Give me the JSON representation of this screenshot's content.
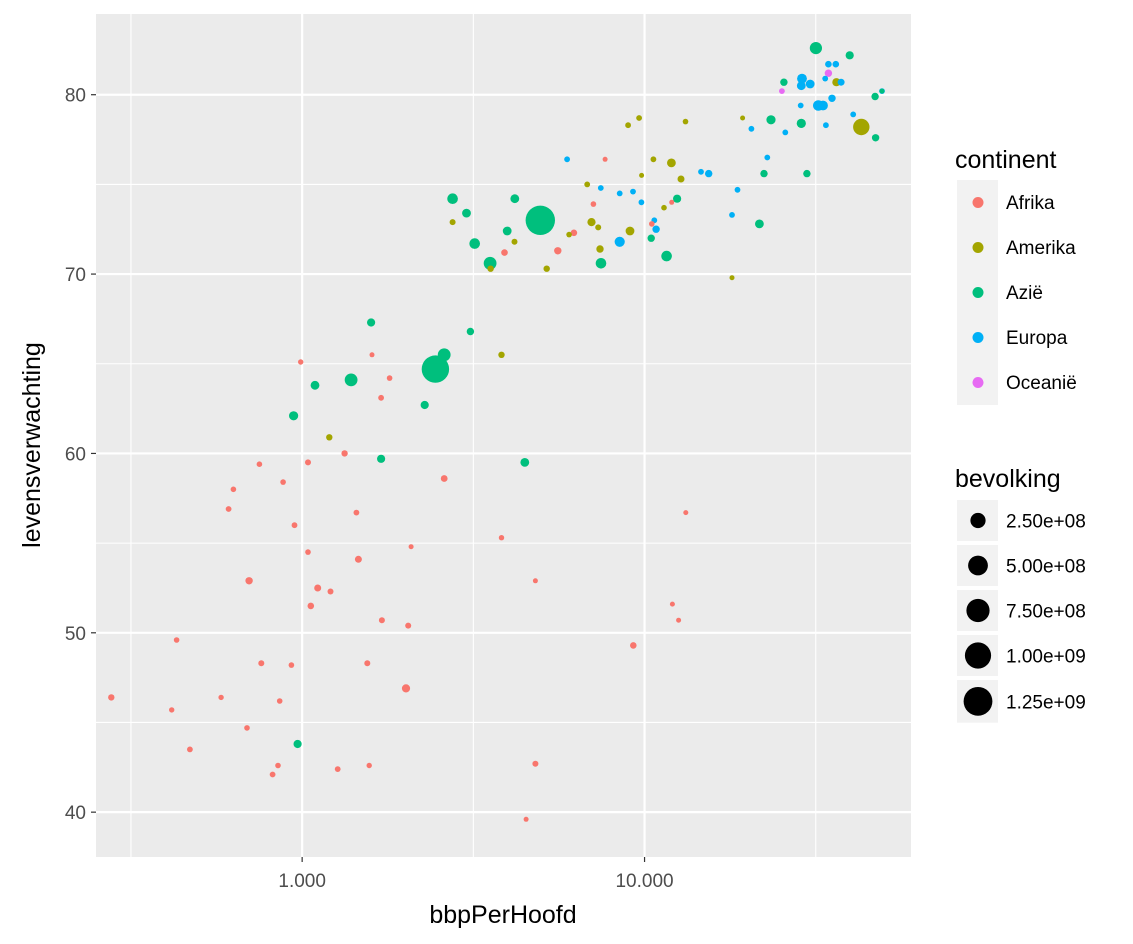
{
  "chart_data": {
    "type": "scatter",
    "xlabel": "bbpPerHoofd",
    "ylabel": "levensverwachting",
    "x_scale": "log10",
    "xlim": [
      250,
      60000
    ],
    "ylim": [
      37.5,
      84.5
    ],
    "x_ticks": [
      {
        "value": 1000,
        "label": "1.000"
      },
      {
        "value": 10000,
        "label": "10.000"
      }
    ],
    "y_ticks": [
      {
        "value": 40,
        "label": "40"
      },
      {
        "value": 50,
        "label": "50"
      },
      {
        "value": 60,
        "label": "60"
      },
      {
        "value": 70,
        "label": "70"
      },
      {
        "value": 80,
        "label": "80"
      }
    ],
    "grid": true,
    "background": "#ebebeb",
    "legend_placement": "right",
    "color_legend": {
      "title": "continent",
      "entries": [
        {
          "name": "Afrika",
          "color": "#F8766D"
        },
        {
          "name": "Amerika",
          "color": "#A3A500"
        },
        {
          "name": "Azië",
          "color": "#00BF7D"
        },
        {
          "name": "Europa",
          "color": "#00B0F6"
        },
        {
          "name": "Oceanië",
          "color": "#E76BF3"
        }
      ]
    },
    "size_legend": {
      "title": "bevolking",
      "entries": [
        {
          "value": 250000000,
          "label": "2.50e+08"
        },
        {
          "value": 500000000,
          "label": "5.00e+08"
        },
        {
          "value": 750000000,
          "label": "7.50e+08"
        },
        {
          "value": 1000000000,
          "label": "1.00e+09"
        },
        {
          "value": 1250000000,
          "label": "1.25e+09"
        }
      ]
    },
    "series": [
      {
        "name": "Afrika",
        "points": [
          {
            "x": 277,
            "y": 46.4,
            "pop": 8
          },
          {
            "x": 416,
            "y": 45.7,
            "pop": 2
          },
          {
            "x": 430,
            "y": 49.6,
            "pop": 3
          },
          {
            "x": 470,
            "y": 43.5,
            "pop": 4
          },
          {
            "x": 580,
            "y": 46.4,
            "pop": 2
          },
          {
            "x": 610,
            "y": 56.9,
            "pop": 4
          },
          {
            "x": 630,
            "y": 58.0,
            "pop": 3
          },
          {
            "x": 690,
            "y": 44.7,
            "pop": 3
          },
          {
            "x": 700,
            "y": 52.9,
            "pop": 20
          },
          {
            "x": 750,
            "y": 59.4,
            "pop": 3
          },
          {
            "x": 760,
            "y": 48.3,
            "pop": 5
          },
          {
            "x": 820,
            "y": 42.1,
            "pop": 4
          },
          {
            "x": 850,
            "y": 42.6,
            "pop": 3
          },
          {
            "x": 860,
            "y": 46.2,
            "pop": 3
          },
          {
            "x": 880,
            "y": 58.4,
            "pop": 3
          },
          {
            "x": 930,
            "y": 48.2,
            "pop": 3
          },
          {
            "x": 950,
            "y": 56.0,
            "pop": 4
          },
          {
            "x": 990,
            "y": 65.1,
            "pop": 2
          },
          {
            "x": 1040,
            "y": 59.5,
            "pop": 5
          },
          {
            "x": 1040,
            "y": 54.5,
            "pop": 3
          },
          {
            "x": 1060,
            "y": 51.5,
            "pop": 10
          },
          {
            "x": 1110,
            "y": 52.5,
            "pop": 15
          },
          {
            "x": 1210,
            "y": 52.3,
            "pop": 6
          },
          {
            "x": 1270,
            "y": 42.4,
            "pop": 4
          },
          {
            "x": 1330,
            "y": 60.0,
            "pop": 8
          },
          {
            "x": 1440,
            "y": 56.7,
            "pop": 4
          },
          {
            "x": 1460,
            "y": 54.1,
            "pop": 15
          },
          {
            "x": 1550,
            "y": 48.3,
            "pop": 5
          },
          {
            "x": 1570,
            "y": 42.6,
            "pop": 2
          },
          {
            "x": 1600,
            "y": 65.5,
            "pop": 1
          },
          {
            "x": 1700,
            "y": 63.1,
            "pop": 4
          },
          {
            "x": 1710,
            "y": 50.7,
            "pop": 5
          },
          {
            "x": 1800,
            "y": 64.2,
            "pop": 3
          },
          {
            "x": 2010,
            "y": 46.9,
            "pop": 30
          },
          {
            "x": 2040,
            "y": 50.4,
            "pop": 6
          },
          {
            "x": 2080,
            "y": 54.8,
            "pop": 1
          },
          {
            "x": 2600,
            "y": 58.6,
            "pop": 12
          },
          {
            "x": 3820,
            "y": 55.3,
            "pop": 2
          },
          {
            "x": 3900,
            "y": 71.2,
            "pop": 10
          },
          {
            "x": 4510,
            "y": 39.6,
            "pop": 1
          },
          {
            "x": 4800,
            "y": 52.9,
            "pop": 1
          },
          {
            "x": 4800,
            "y": 42.7,
            "pop": 5
          },
          {
            "x": 5580,
            "y": 71.3,
            "pop": 20
          },
          {
            "x": 6220,
            "y": 72.3,
            "pop": 10
          },
          {
            "x": 7090,
            "y": 73.9,
            "pop": 3
          },
          {
            "x": 7670,
            "y": 76.4,
            "pop": 1
          },
          {
            "x": 9270,
            "y": 49.3,
            "pop": 10
          },
          {
            "x": 10500,
            "y": 72.8,
            "pop": 3
          },
          {
            "x": 12000,
            "y": 74.0,
            "pop": 1
          },
          {
            "x": 12060,
            "y": 51.6,
            "pop": 1
          },
          {
            "x": 12570,
            "y": 50.7,
            "pop": 1
          },
          {
            "x": 13200,
            "y": 56.7,
            "pop": 1
          }
        ]
      },
      {
        "name": "Amerika",
        "points": [
          {
            "x": 1200,
            "y": 60.9,
            "pop": 8
          },
          {
            "x": 2750,
            "y": 72.9,
            "pop": 6
          },
          {
            "x": 3550,
            "y": 70.3,
            "pop": 8
          },
          {
            "x": 3820,
            "y": 65.5,
            "pop": 8
          },
          {
            "x": 4170,
            "y": 71.8,
            "pop": 6
          },
          {
            "x": 5180,
            "y": 70.3,
            "pop": 8
          },
          {
            "x": 6020,
            "y": 72.2,
            "pop": 3
          },
          {
            "x": 6800,
            "y": 75.0,
            "pop": 4
          },
          {
            "x": 7000,
            "y": 72.9,
            "pop": 30
          },
          {
            "x": 7320,
            "y": 72.6,
            "pop": 6
          },
          {
            "x": 7410,
            "y": 71.4,
            "pop": 20
          },
          {
            "x": 8950,
            "y": 78.3,
            "pop": 4
          },
          {
            "x": 9070,
            "y": 72.4,
            "pop": 40
          },
          {
            "x": 9640,
            "y": 78.7,
            "pop": 4
          },
          {
            "x": 9800,
            "y": 75.5,
            "pop": 1
          },
          {
            "x": 10610,
            "y": 76.4,
            "pop": 4
          },
          {
            "x": 11400,
            "y": 73.7,
            "pop": 3
          },
          {
            "x": 11980,
            "y": 76.2,
            "pop": 40
          },
          {
            "x": 12780,
            "y": 75.3,
            "pop": 15
          },
          {
            "x": 13170,
            "y": 78.5,
            "pop": 3
          },
          {
            "x": 18000,
            "y": 69.8,
            "pop": 1
          },
          {
            "x": 19330,
            "y": 78.7,
            "pop": 1
          },
          {
            "x": 36320,
            "y": 80.7,
            "pop": 30
          },
          {
            "x": 42950,
            "y": 78.2,
            "pop": 300
          }
        ]
      },
      {
        "name": "Azië",
        "points": [
          {
            "x": 970,
            "y": 43.8,
            "pop": 30
          },
          {
            "x": 944,
            "y": 62.1,
            "pop": 50
          },
          {
            "x": 1090,
            "y": 63.8,
            "pop": 40
          },
          {
            "x": 1390,
            "y": 64.1,
            "pop": 150
          },
          {
            "x": 1590,
            "y": 67.3,
            "pop": 30
          },
          {
            "x": 1700,
            "y": 59.7,
            "pop": 30
          },
          {
            "x": 2280,
            "y": 62.7,
            "pop": 30
          },
          {
            "x": 2450,
            "y": 64.7,
            "pop": 1110
          },
          {
            "x": 2600,
            "y": 65.5,
            "pop": 150
          },
          {
            "x": 2750,
            "y": 74.2,
            "pop": 80
          },
          {
            "x": 3020,
            "y": 73.4,
            "pop": 40
          },
          {
            "x": 3100,
            "y": 66.8,
            "pop": 20
          },
          {
            "x": 3190,
            "y": 71.7,
            "pop": 80
          },
          {
            "x": 3540,
            "y": 70.6,
            "pop": 150
          },
          {
            "x": 3970,
            "y": 72.4,
            "pop": 40
          },
          {
            "x": 4180,
            "y": 74.2,
            "pop": 40
          },
          {
            "x": 4470,
            "y": 59.5,
            "pop": 40
          },
          {
            "x": 4960,
            "y": 73.0,
            "pop": 1320
          },
          {
            "x": 7460,
            "y": 70.6,
            "pop": 80
          },
          {
            "x": 10460,
            "y": 72.0,
            "pop": 20
          },
          {
            "x": 11600,
            "y": 71.0,
            "pop": 80
          },
          {
            "x": 12450,
            "y": 74.2,
            "pop": 30
          },
          {
            "x": 21650,
            "y": 72.8,
            "pop": 40
          },
          {
            "x": 22320,
            "y": 75.6,
            "pop": 20
          },
          {
            "x": 23400,
            "y": 78.6,
            "pop": 50
          },
          {
            "x": 25520,
            "y": 80.7,
            "pop": 20
          },
          {
            "x": 28700,
            "y": 78.4,
            "pop": 50
          },
          {
            "x": 29800,
            "y": 75.6,
            "pop": 20
          },
          {
            "x": 31650,
            "y": 82.6,
            "pop": 130
          },
          {
            "x": 39720,
            "y": 82.2,
            "pop": 30
          },
          {
            "x": 47300,
            "y": 77.6,
            "pop": 20
          },
          {
            "x": 47140,
            "y": 79.9,
            "pop": 20
          },
          {
            "x": 49360,
            "y": 80.2,
            "pop": 1
          }
        ]
      },
      {
        "name": "Europa",
        "points": [
          {
            "x": 5940,
            "y": 76.4,
            "pop": 4
          },
          {
            "x": 7450,
            "y": 74.8,
            "pop": 4
          },
          {
            "x": 8460,
            "y": 74.5,
            "pop": 4
          },
          {
            "x": 8460,
            "y": 71.8,
            "pop": 70
          },
          {
            "x": 9250,
            "y": 74.6,
            "pop": 4
          },
          {
            "x": 9790,
            "y": 74.0,
            "pop": 4
          },
          {
            "x": 10680,
            "y": 73.0,
            "pop": 4
          },
          {
            "x": 10810,
            "y": 72.5,
            "pop": 20
          },
          {
            "x": 14620,
            "y": 75.7,
            "pop": 4
          },
          {
            "x": 15390,
            "y": 75.6,
            "pop": 20
          },
          {
            "x": 18010,
            "y": 73.3,
            "pop": 4
          },
          {
            "x": 18680,
            "y": 74.7,
            "pop": 4
          },
          {
            "x": 20510,
            "y": 78.1,
            "pop": 4
          },
          {
            "x": 22830,
            "y": 76.5,
            "pop": 4
          },
          {
            "x": 25770,
            "y": 77.9,
            "pop": 4
          },
          {
            "x": 28570,
            "y": 79.4,
            "pop": 4
          },
          {
            "x": 28690,
            "y": 80.5,
            "pop": 40
          },
          {
            "x": 28820,
            "y": 80.9,
            "pop": 60
          },
          {
            "x": 30470,
            "y": 80.6,
            "pop": 40
          },
          {
            "x": 32170,
            "y": 79.4,
            "pop": 82
          },
          {
            "x": 33210,
            "y": 79.4,
            "pop": 60
          },
          {
            "x": 33690,
            "y": 80.9,
            "pop": 4
          },
          {
            "x": 33860,
            "y": 78.3,
            "pop": 4
          },
          {
            "x": 34440,
            "y": 81.7,
            "pop": 10
          },
          {
            "x": 35280,
            "y": 79.8,
            "pop": 20
          },
          {
            "x": 36180,
            "y": 81.7,
            "pop": 10
          },
          {
            "x": 37500,
            "y": 80.7,
            "pop": 15
          },
          {
            "x": 40680,
            "y": 78.9,
            "pop": 4
          },
          {
            "x": 49360,
            "y": 80.2,
            "pop": 4
          }
        ]
      },
      {
        "name": "Oceanië",
        "points": [
          {
            "x": 25180,
            "y": 80.2,
            "pop": 4
          },
          {
            "x": 34440,
            "y": 81.2,
            "pop": 20
          }
        ]
      }
    ]
  }
}
